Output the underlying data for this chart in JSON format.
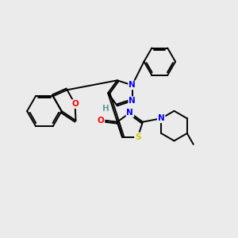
{
  "bg_color": "#ebebeb",
  "bond_color": "#000000",
  "atom_colors": {
    "N": "#0000ff",
    "O": "#ff0000",
    "S": "#cccc00",
    "H": "#5f9ea0",
    "C": "#000000"
  },
  "figsize": [
    3.0,
    3.0
  ],
  "dpi": 100
}
